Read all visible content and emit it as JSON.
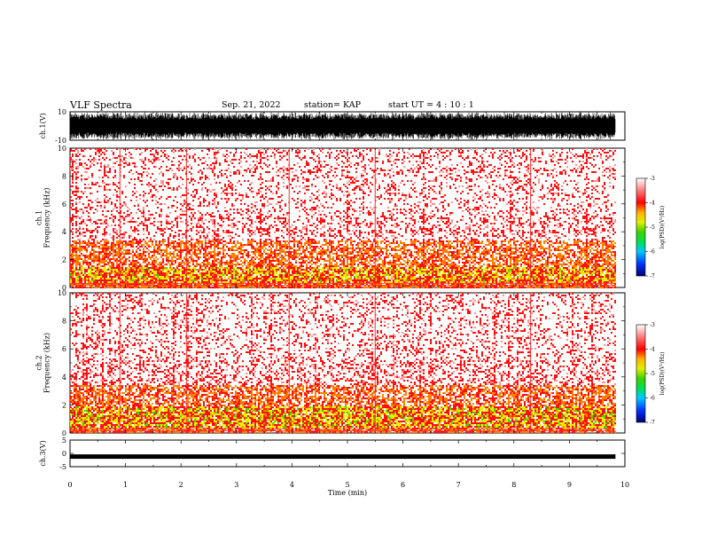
{
  "header": {
    "title": "VLF Spectra",
    "date": "Sep. 21, 2022",
    "station": "station= KAP",
    "start_ut": "start  UT =   4 : 10 : 1"
  },
  "chart_data": [
    {
      "type": "line",
      "panel": "ch1-waveform",
      "ylabel": "ch.1(V)",
      "ylim": [
        -10,
        10
      ],
      "yticks": [
        "10",
        "-10"
      ],
      "x_range_min": [
        0,
        9.83
      ],
      "description_values": "saturated dense waveform"
    },
    {
      "type": "heatmap",
      "panel": "ch1-spectrogram",
      "ylabel": "ch.1\nFrequency (kHz)",
      "ylim": [
        0,
        10
      ],
      "yticks": [
        "10",
        "8",
        "6",
        "4",
        "2",
        "0"
      ],
      "colorbar": {
        "label": "log(PSD)(V²/Hz)",
        "ticks": [
          "-3",
          "-4",
          "-5",
          "-6",
          "-7"
        ],
        "range": [
          -7,
          -3
        ]
      }
    },
    {
      "type": "heatmap",
      "panel": "ch2-spectrogram",
      "ylabel": "ch.2\nFrequency (kHz)",
      "ylim": [
        0,
        10
      ],
      "yticks": [
        "10",
        "8",
        "6",
        "4",
        "2",
        "0"
      ],
      "colorbar": {
        "label": "log(PSD)(V²/Hz)",
        "ticks": [
          "-3",
          "-4",
          "-5",
          "-6",
          "-7"
        ],
        "range": [
          -7,
          -3
        ]
      }
    },
    {
      "type": "line",
      "panel": "ch3-waveform",
      "ylabel": "ch.3(V)",
      "ylim": [
        -5,
        5
      ],
      "yticks": [
        "5",
        "0",
        "-5"
      ],
      "level": -1.2
    }
  ],
  "xaxis": {
    "label": "Time  (min)",
    "ticks": [
      "0",
      "1",
      "2",
      "3",
      "4",
      "5",
      "6",
      "7",
      "8",
      "9",
      "10"
    ],
    "range": [
      0,
      10
    ],
    "data_end": 9.83
  },
  "colors": {
    "scale": [
      "#000080",
      "#0050ff",
      "#00e0a0",
      "#00d000",
      "#c8e600",
      "#ffff00",
      "#ff9000",
      "#ff0000",
      "#ffa0a0",
      "#ffffff"
    ]
  }
}
